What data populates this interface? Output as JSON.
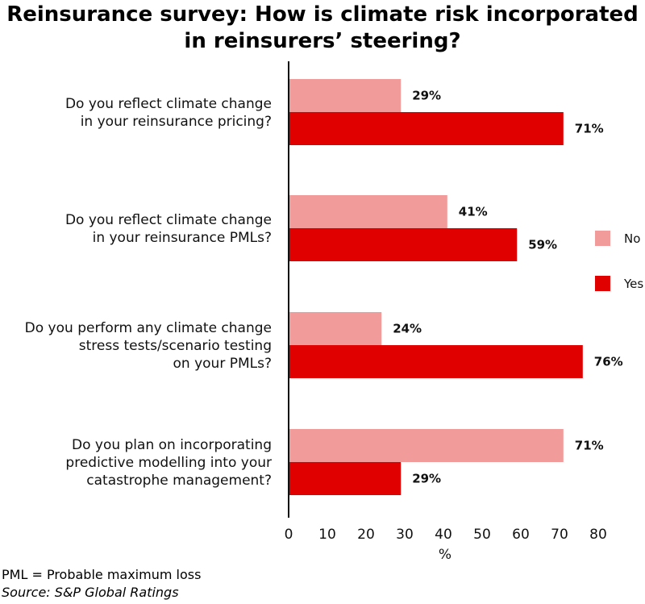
{
  "chart_data": {
    "type": "bar",
    "orientation": "horizontal",
    "title": "Reinsurance survey: How is climate risk incorporated\nin reinsurers’ steering?",
    "categories": [
      [
        "Do you reflect climate change",
        "in your reinsurance pricing?"
      ],
      [
        "Do you reflect climate change",
        "in your reinsurance PMLs?"
      ],
      [
        "Do you perform any climate change",
        "stress tests/scenario testing",
        "on your PMLs?"
      ],
      [
        "Do you plan on incorporating",
        "predictive modelling into your",
        "catastrophe management?"
      ]
    ],
    "series": [
      {
        "name": "No",
        "values": [
          29,
          41,
          24,
          71
        ],
        "labels": [
          "29%",
          "41%",
          "24%",
          "71%"
        ],
        "color": "#f29b9b"
      },
      {
        "name": "Yes",
        "values": [
          71,
          59,
          76,
          29
        ],
        "labels": [
          "71%",
          "59%",
          "76%",
          "29%"
        ],
        "color": "#e00000"
      }
    ],
    "xlabel": "%",
    "xlim": [
      0,
      80
    ],
    "xticks": [
      "0",
      "10",
      "20",
      "30",
      "40",
      "50",
      "60",
      "70",
      "80"
    ],
    "grid": false,
    "legend_position": "right"
  },
  "footnote": "PML = Probable maximum loss",
  "source": "Source: S&P Global Ratings"
}
